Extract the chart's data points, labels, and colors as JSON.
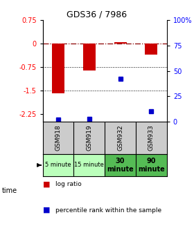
{
  "title": "GDS36 / 7986",
  "samples": [
    "GSM918",
    "GSM919",
    "GSM932",
    "GSM933"
  ],
  "time_labels": [
    "5 minute",
    "15 minute",
    "30\nminute",
    "90\nminute"
  ],
  "time_bg_colors": [
    "#bbffbb",
    "#bbffbb",
    "#55bb55",
    "#55bb55"
  ],
  "sample_bg_color": "#cccccc",
  "log_ratios": [
    -1.6,
    -0.85,
    0.05,
    -0.35
  ],
  "percentile_ranks": [
    2,
    3,
    42,
    10
  ],
  "ylim_left": [
    -2.5,
    0.75
  ],
  "ylim_right": [
    0,
    100
  ],
  "left_ticks": [
    0.75,
    0,
    -0.75,
    -1.5,
    -2.25
  ],
  "right_ticks": [
    100,
    75,
    50,
    25,
    0
  ],
  "bar_color": "#cc0000",
  "dot_color": "#0000cc",
  "legend_bar_label": "log ratio",
  "legend_dot_label": "percentile rank within the sample"
}
